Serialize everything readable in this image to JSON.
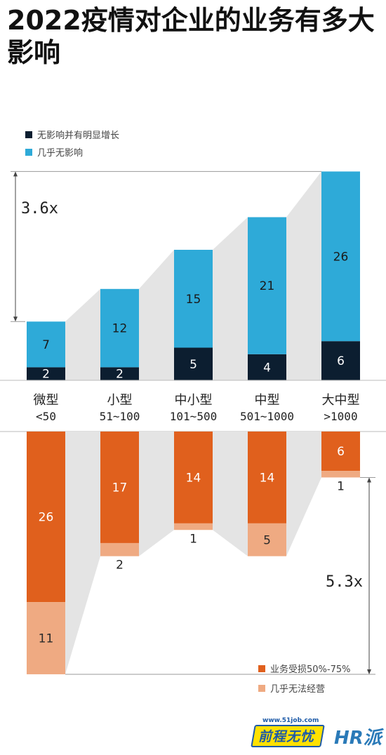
{
  "title": "2022疫情对企业的业务有多大影响",
  "colors": {
    "navy": "#0c1e30",
    "blue": "#2eaad8",
    "orange": "#e0601d",
    "peach": "#efaa82",
    "connector": "#e4e4e4",
    "text": "#222222"
  },
  "chart_data": [
    {
      "type": "bar",
      "stacked": true,
      "categories": [
        "微型\n<50",
        "小型\n51~100",
        "中小型\n101~500",
        "中型\n501~1000",
        "大中型\n>1000"
      ],
      "series": [
        {
          "name": "无影响并有明显增长",
          "color": "#0c1e30",
          "values": [
            2,
            2,
            5,
            4,
            6
          ]
        },
        {
          "name": "几乎无影响",
          "color": "#2eaad8",
          "values": [
            7,
            12,
            15,
            21,
            26
          ]
        }
      ],
      "legend_position": "top-left",
      "annotation": "3.6x"
    },
    {
      "type": "bar",
      "stacked": true,
      "direction": "downward",
      "categories": [
        "微型\n<50",
        "小型\n51~100",
        "中小型\n101~500",
        "中型\n501~1000",
        "大中型\n>1000"
      ],
      "series": [
        {
          "name": "业务受损50%-75%",
          "color": "#e0601d",
          "values": [
            26,
            17,
            14,
            14,
            6
          ]
        },
        {
          "name": "几乎无法经营",
          "color": "#efaa82",
          "values": [
            11,
            2,
            1,
            5,
            1
          ]
        }
      ],
      "legend_position": "bottom-right",
      "annotation": "5.3x"
    }
  ],
  "category_labels": [
    {
      "name": "微型",
      "range": "<50"
    },
    {
      "name": "小型",
      "range": "51~100"
    },
    {
      "name": "中小型",
      "range": "101~500"
    },
    {
      "name": "中型",
      "range": "501~1000"
    },
    {
      "name": "大中型",
      "range": ">1000"
    }
  ],
  "logos": {
    "url": "www.51job.com",
    "brand": "前程无忧",
    "hr": "HR派"
  }
}
